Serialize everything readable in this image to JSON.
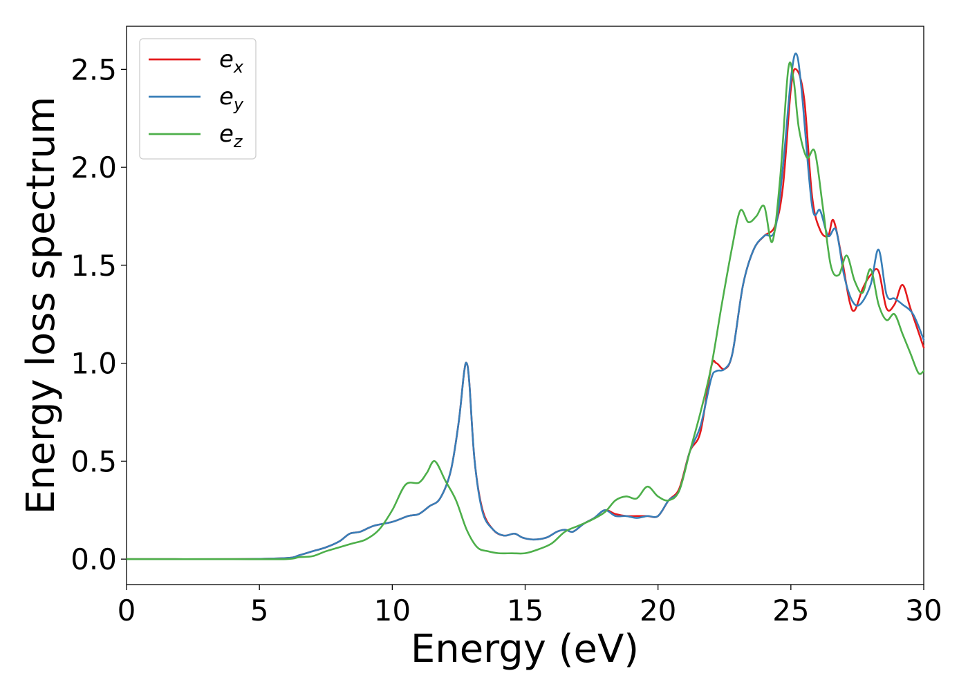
{
  "chart_data": {
    "type": "line",
    "title": "",
    "xlabel": "Energy (eV)",
    "ylabel": "Energy loss spectrum",
    "xlim": [
      0,
      30
    ],
    "ylim": [
      -0.13,
      2.72
    ],
    "xticks": [
      0,
      5,
      10,
      15,
      20,
      25,
      30
    ],
    "xtick_labels": [
      "0",
      "5",
      "10",
      "15",
      "20",
      "25",
      "30"
    ],
    "yticks": [
      0,
      0.5,
      1.0,
      1.5,
      2.0,
      2.5
    ],
    "ytick_labels": [
      "0.0",
      "0.5",
      "1.0",
      "1.5",
      "2.0",
      "2.5"
    ],
    "grid": false,
    "legend_position": "top-left",
    "series": [
      {
        "name": "e",
        "subscript": "x",
        "color": "#e41a1c",
        "x": [
          0,
          4,
          6,
          6.5,
          7,
          7.5,
          8,
          8.4,
          8.8,
          9.3,
          10,
          10.6,
          11.0,
          11.4,
          11.8,
          12.2,
          12.5,
          12.7,
          12.8,
          12.9,
          13.1,
          13.4,
          13.8,
          14.2,
          14.6,
          14.9,
          15.3,
          15.8,
          16.2,
          16.5,
          16.8,
          17.2,
          17.6,
          18.0,
          18.4,
          18.8,
          19.2,
          19.6,
          20.0,
          20.4,
          20.8,
          21.2,
          21.6,
          22.0,
          22.2,
          22.5,
          22.8,
          23.2,
          23.6,
          24.0,
          24.4,
          24.7,
          25.0,
          25.2,
          25.5,
          25.8,
          26.1,
          26.4,
          26.6,
          26.9,
          27.2,
          27.4,
          27.7,
          28.0,
          28.3,
          28.6,
          28.9,
          29.2,
          29.5,
          30.0
        ],
        "values": [
          0.0,
          0.0,
          0.005,
          0.02,
          0.04,
          0.06,
          0.09,
          0.13,
          0.14,
          0.17,
          0.19,
          0.22,
          0.23,
          0.27,
          0.31,
          0.45,
          0.7,
          0.95,
          1.0,
          0.9,
          0.5,
          0.25,
          0.15,
          0.12,
          0.13,
          0.11,
          0.1,
          0.11,
          0.14,
          0.15,
          0.14,
          0.18,
          0.21,
          0.25,
          0.23,
          0.22,
          0.22,
          0.22,
          0.22,
          0.3,
          0.36,
          0.55,
          0.65,
          0.98,
          1.0,
          0.97,
          1.05,
          1.4,
          1.58,
          1.65,
          1.7,
          1.9,
          2.4,
          2.5,
          2.35,
          1.85,
          1.68,
          1.65,
          1.73,
          1.55,
          1.32,
          1.27,
          1.38,
          1.45,
          1.47,
          1.28,
          1.3,
          1.4,
          1.28,
          1.08
        ]
      },
      {
        "name": "e",
        "subscript": "y",
        "color": "#377eb8",
        "x": [
          0,
          4,
          6,
          6.5,
          7,
          7.5,
          8,
          8.4,
          8.8,
          9.3,
          10,
          10.6,
          11.0,
          11.4,
          11.8,
          12.2,
          12.5,
          12.7,
          12.8,
          12.9,
          13.1,
          13.4,
          13.8,
          14.2,
          14.6,
          14.9,
          15.3,
          15.8,
          16.2,
          16.5,
          16.8,
          17.2,
          17.6,
          18.0,
          18.4,
          18.8,
          19.2,
          19.6,
          20.0,
          20.4,
          20.8,
          21.2,
          21.6,
          22.0,
          22.2,
          22.5,
          22.8,
          23.2,
          23.6,
          24.0,
          24.4,
          24.7,
          25.0,
          25.2,
          25.4,
          25.8,
          26.1,
          26.4,
          26.7,
          27.0,
          27.3,
          27.6,
          28.0,
          28.3,
          28.6,
          28.9,
          29.2,
          29.6,
          30.0
        ],
        "values": [
          0.0,
          0.0,
          0.005,
          0.02,
          0.04,
          0.06,
          0.09,
          0.13,
          0.14,
          0.17,
          0.19,
          0.22,
          0.23,
          0.27,
          0.31,
          0.45,
          0.7,
          0.95,
          1.0,
          0.9,
          0.5,
          0.24,
          0.15,
          0.12,
          0.13,
          0.11,
          0.1,
          0.11,
          0.14,
          0.15,
          0.14,
          0.18,
          0.21,
          0.25,
          0.22,
          0.22,
          0.21,
          0.22,
          0.22,
          0.3,
          0.35,
          0.55,
          0.68,
          0.92,
          0.96,
          0.97,
          1.05,
          1.4,
          1.58,
          1.65,
          1.68,
          2.0,
          2.45,
          2.58,
          2.4,
          1.8,
          1.78,
          1.65,
          1.68,
          1.45,
          1.32,
          1.3,
          1.4,
          1.58,
          1.35,
          1.33,
          1.3,
          1.25,
          1.12
        ]
      },
      {
        "name": "e",
        "subscript": "z",
        "color": "#4daf4a",
        "x": [
          0,
          4,
          6,
          6.5,
          7,
          7.5,
          8,
          8.5,
          9,
          9.5,
          10,
          10.5,
          11.0,
          11.3,
          11.6,
          12.0,
          12.4,
          12.8,
          13.2,
          13.6,
          14.0,
          14.5,
          15.0,
          15.5,
          16.0,
          16.5,
          17.0,
          17.5,
          18.0,
          18.4,
          18.8,
          19.2,
          19.6,
          20.0,
          20.4,
          20.8,
          21.2,
          21.6,
          22.0,
          22.4,
          22.8,
          23.1,
          23.4,
          23.7,
          24.0,
          24.3,
          24.6,
          24.9,
          25.1,
          25.3,
          25.6,
          25.9,
          26.2,
          26.5,
          26.8,
          27.1,
          27.4,
          27.7,
          28.0,
          28.3,
          28.6,
          28.9,
          29.2,
          29.5,
          29.8,
          30.0
        ],
        "values": [
          0.0,
          0.0,
          0.0,
          0.01,
          0.015,
          0.04,
          0.06,
          0.08,
          0.1,
          0.15,
          0.25,
          0.38,
          0.39,
          0.44,
          0.5,
          0.4,
          0.3,
          0.15,
          0.06,
          0.04,
          0.03,
          0.03,
          0.03,
          0.05,
          0.08,
          0.14,
          0.17,
          0.2,
          0.24,
          0.3,
          0.32,
          0.31,
          0.37,
          0.32,
          0.3,
          0.35,
          0.55,
          0.75,
          0.98,
          1.3,
          1.6,
          1.78,
          1.72,
          1.75,
          1.8,
          1.62,
          1.95,
          2.5,
          2.45,
          2.2,
          2.05,
          2.08,
          1.8,
          1.5,
          1.45,
          1.55,
          1.42,
          1.36,
          1.48,
          1.3,
          1.22,
          1.25,
          1.15,
          1.05,
          0.95,
          0.96
        ]
      }
    ]
  }
}
